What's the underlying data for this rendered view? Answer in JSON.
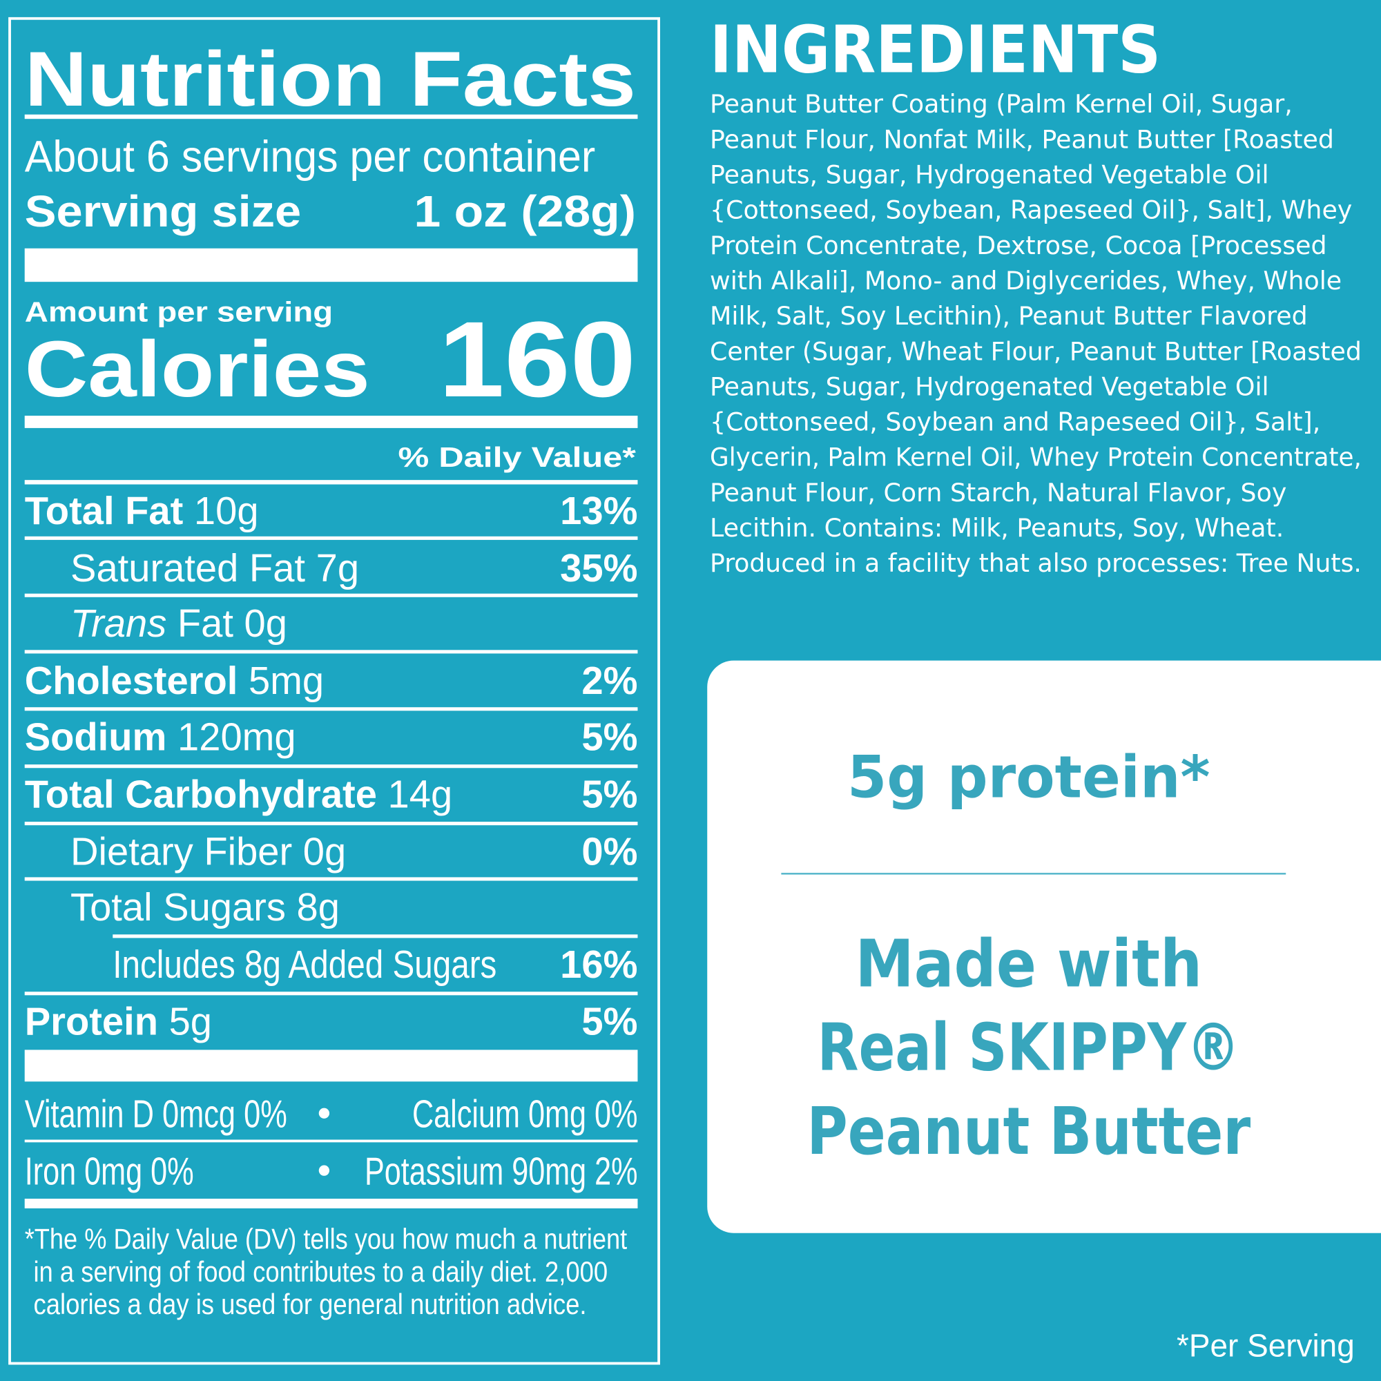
{
  "nutrition_facts": {
    "title": "Nutrition Facts",
    "servings_per_container": "About 6 servings per container",
    "serving_size": {
      "label": "Serving size",
      "value": "1 oz (28g)"
    },
    "amount_per_serving": "Amount per serving",
    "calories": {
      "label": "Calories",
      "value": "160"
    },
    "daily_value_header": "% Daily Value*",
    "nutrients": [
      {
        "name": "Total Fat",
        "amount": "10g",
        "daily_value": "13%"
      },
      {
        "name": "Saturated Fat",
        "amount": "7g",
        "daily_value": "35%"
      },
      {
        "name_italic": "Trans",
        "name": "Fat",
        "amount": "0g"
      },
      {
        "name": "Cholesterol",
        "amount": "5mg",
        "daily_value": "2%"
      },
      {
        "name": "Sodium",
        "amount": "120mg",
        "daily_value": "5%"
      },
      {
        "name": "Total Carbohydrate",
        "amount": "14g",
        "daily_value": "5%"
      },
      {
        "name": "Dietary Fiber",
        "amount": "0g",
        "daily_value": "0%"
      },
      {
        "name": "Total Sugars",
        "amount": "8g"
      },
      {
        "name": "Includes 8g Added Sugars",
        "daily_value": "16%"
      },
      {
        "name": "Protein",
        "amount": "5g",
        "daily_value": "5%"
      }
    ],
    "vitamins_minerals": [
      [
        "Vitamin D 0mcg 0%",
        "Calcium 0mg 0%"
      ],
      [
        "Iron 0mg 0%",
        "Potassium 90mg 2%"
      ]
    ],
    "footnote": [
      "*The % Daily Value (DV) tells you how much a nutrient",
      "in a serving of food contributes to a daily diet. 2,000",
      "calories a day is used for general nutrition advice."
    ]
  },
  "ingredients": {
    "title": "INGREDIENTS",
    "lines": [
      "Peanut Butter Coating (Palm Kernel Oil, Sugar,",
      "Peanut Flour, Nonfat Milk, Peanut Butter [Roasted",
      "Peanuts, Sugar, Hydrogenated Vegetable Oil",
      "{Cottonseed, Soybean, Rapeseed Oil}, Salt], Whey",
      "Protein Concentrate, Dextrose, Cocoa [Processed",
      "with Alkali], Mono- and Diglycerides, Whey, Whole",
      "Milk, Salt, Soy Lecithin), Peanut Butter Flavored",
      "Center (Sugar, Wheat Flour, Peanut Butter [Roasted",
      "Peanuts, Sugar, Hydrogenated Vegetable Oil",
      "{Cottonseed, Soybean and Rapeseed Oil}, Salt],",
      "Glycerin, Palm Kernel Oil, Whey Protein Concentrate,",
      "Peanut Flour, Corn Starch, Natural Flavor, Soy",
      "Lecithin. Contains: Milk, Peanuts, Soy, Wheat.",
      "Produced in a facility that also processes: Tree Nuts."
    ]
  },
  "callout": {
    "protein": "5g protein*",
    "made_with": [
      "Made with",
      "Real SKIPPY®",
      "Peanut Butter"
    ]
  },
  "per_serving_note": "*Per Serving"
}
